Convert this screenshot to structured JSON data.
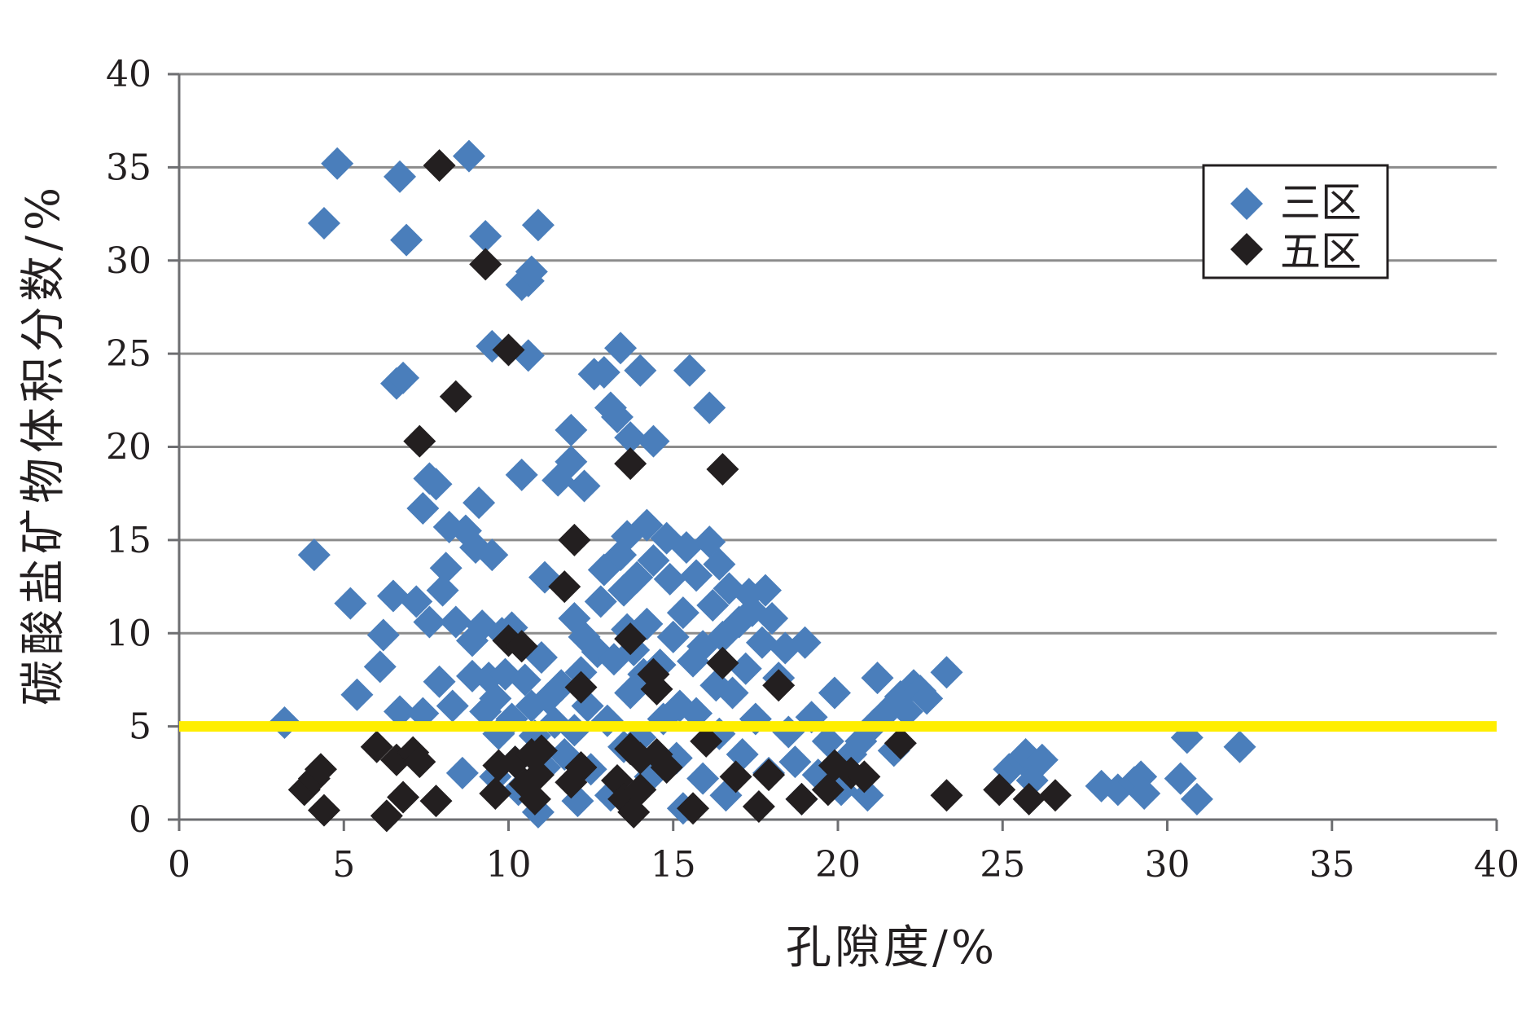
{
  "chart_data": {
    "type": "scatter",
    "title": "",
    "xlabel": "孔隙度/%",
    "ylabel": "碳酸盐矿物体积分数/%",
    "xlim": [
      0,
      40
    ],
    "ylim": [
      0,
      40
    ],
    "xticks": [
      0,
      5,
      10,
      15,
      20,
      25,
      30,
      35,
      40
    ],
    "yticks": [
      0,
      5,
      10,
      15,
      20,
      25,
      30,
      35,
      40
    ],
    "grid": "horizontal",
    "legend_position": "top-right",
    "reference_line": {
      "y": 5,
      "color": "#ffee00"
    },
    "series": [
      {
        "name": "三区",
        "color": "#4a7ebb",
        "marker": "diamond",
        "points": [
          [
            3.2,
            5.2
          ],
          [
            4.1,
            14.2
          ],
          [
            4.4,
            32
          ],
          [
            4.8,
            35.2
          ],
          [
            5.2,
            11.6
          ],
          [
            5.4,
            6.7
          ],
          [
            6.1,
            8.2
          ],
          [
            6.2,
            9.9
          ],
          [
            6.5,
            12
          ],
          [
            6.6,
            23.4
          ],
          [
            6.8,
            23.7
          ],
          [
            6.7,
            5.8
          ],
          [
            6.7,
            34.5
          ],
          [
            6.9,
            31.1
          ],
          [
            7.2,
            11.7
          ],
          [
            7.4,
            16.7
          ],
          [
            7.4,
            5.7
          ],
          [
            7.6,
            18.3
          ],
          [
            7.6,
            10.6
          ],
          [
            7.8,
            18
          ],
          [
            7.9,
            7.4
          ],
          [
            8,
            12.3
          ],
          [
            8.1,
            13.5
          ],
          [
            8.2,
            15.7
          ],
          [
            8.4,
            10.6
          ],
          [
            8.3,
            6.1
          ],
          [
            8.6,
            2.5
          ],
          [
            8.7,
            15.5
          ],
          [
            8.8,
            35.6
          ],
          [
            8.9,
            7.7
          ],
          [
            8.9,
            9.6
          ],
          [
            9,
            14.6
          ],
          [
            9.1,
            17
          ],
          [
            9.2,
            10.4
          ],
          [
            9.3,
            31.3
          ],
          [
            9.3,
            5.8
          ],
          [
            9.4,
            7.6
          ],
          [
            9.5,
            25.4
          ],
          [
            9.5,
            14.2
          ],
          [
            9.6,
            2.3
          ],
          [
            9.6,
            6.5
          ],
          [
            9.7,
            4.6
          ],
          [
            9.8,
            10
          ],
          [
            9.9,
            7.8
          ],
          [
            10.1,
            10.3
          ],
          [
            10.1,
            5.4
          ],
          [
            10.2,
            3.1
          ],
          [
            10.3,
            1.6
          ],
          [
            10.4,
            18.5
          ],
          [
            10.4,
            28.7
          ],
          [
            10.5,
            7.5
          ],
          [
            10.6,
            28.9
          ],
          [
            10.6,
            24.9
          ],
          [
            10.7,
            29.4
          ],
          [
            10.7,
            6.1
          ],
          [
            10.8,
            4.5
          ],
          [
            10.9,
            31.9
          ],
          [
            10.9,
            0.4
          ],
          [
            11,
            8.7
          ],
          [
            11.1,
            13
          ],
          [
            11.1,
            2.8
          ],
          [
            11.2,
            6.5
          ],
          [
            11.4,
            5.2
          ],
          [
            11.5,
            18.2
          ],
          [
            11.6,
            7.2
          ],
          [
            11.7,
            3.5
          ],
          [
            11.9,
            20.9
          ],
          [
            11.9,
            19.2
          ],
          [
            12,
            10.8
          ],
          [
            12,
            4.8
          ],
          [
            12.1,
            1
          ],
          [
            12.2,
            7.9
          ],
          [
            12.3,
            9.8
          ],
          [
            12.3,
            17.9
          ],
          [
            12.4,
            6.1
          ],
          [
            12.5,
            2.7
          ],
          [
            12.6,
            23.9
          ],
          [
            12.7,
            9
          ],
          [
            12.8,
            11.7
          ],
          [
            12.9,
            24
          ],
          [
            12.9,
            13.4
          ],
          [
            13,
            5.3
          ],
          [
            13.1,
            22.1
          ],
          [
            13.1,
            1.3
          ],
          [
            13.2,
            8.6
          ],
          [
            13.3,
            21.6
          ],
          [
            13.4,
            14.2
          ],
          [
            13.4,
            25.3
          ],
          [
            13.5,
            3.9
          ],
          [
            13.5,
            12.3
          ],
          [
            13.6,
            10.2
          ],
          [
            13.6,
            15.2
          ],
          [
            13.7,
            6.8
          ],
          [
            13.7,
            20.5
          ],
          [
            13.8,
            9.1
          ],
          [
            13.9,
            13
          ],
          [
            14,
            24.1
          ],
          [
            14,
            4.4
          ],
          [
            14.1,
            7.8
          ],
          [
            14.2,
            15.8
          ],
          [
            14.2,
            10.5
          ],
          [
            14.3,
            2.3
          ],
          [
            14.4,
            20.3
          ],
          [
            14.4,
            13.9
          ],
          [
            14.6,
            8.3
          ],
          [
            14.7,
            5.4
          ],
          [
            14.8,
            15.1
          ],
          [
            14.9,
            12.9
          ],
          [
            15,
            9.8
          ],
          [
            15.1,
            3.3
          ],
          [
            15.2,
            6.1
          ],
          [
            15.3,
            11.1
          ],
          [
            15.3,
            0.6
          ],
          [
            15.4,
            14.6
          ],
          [
            15.5,
            24.1
          ],
          [
            15.6,
            8.5
          ],
          [
            15.7,
            5.7
          ],
          [
            15.7,
            13.1
          ],
          [
            15.9,
            9.3
          ],
          [
            15.9,
            2.2
          ],
          [
            16.1,
            14.9
          ],
          [
            16.1,
            22.1
          ],
          [
            16.2,
            11.5
          ],
          [
            16.3,
            7.2
          ],
          [
            16.4,
            4.6
          ],
          [
            16.4,
            13.7
          ],
          [
            16.5,
            9.8
          ],
          [
            16.6,
            1.3
          ],
          [
            16.7,
            12.4
          ],
          [
            16.8,
            6.8
          ],
          [
            17,
            10.6
          ],
          [
            17.1,
            3.5
          ],
          [
            17.2,
            8.1
          ],
          [
            17.3,
            12.1
          ],
          [
            17.4,
            11.2
          ],
          [
            17.5,
            5.4
          ],
          [
            17.7,
            9.5
          ],
          [
            17.8,
            12.3
          ],
          [
            17.9,
            2.5
          ],
          [
            18,
            10.8
          ],
          [
            18.2,
            7.6
          ],
          [
            18.4,
            9.2
          ],
          [
            18.5,
            4.7
          ],
          [
            18.7,
            3.1
          ],
          [
            18.9,
            1.1
          ],
          [
            19,
            9.5
          ],
          [
            19.2,
            5.5
          ],
          [
            19.4,
            2.4
          ],
          [
            19.7,
            4.2
          ],
          [
            19.9,
            6.8
          ],
          [
            20.1,
            1.6
          ],
          [
            20.4,
            3.5
          ],
          [
            20.7,
            4.2
          ],
          [
            20.9,
            1.3
          ],
          [
            21.1,
            5.1
          ],
          [
            21.2,
            7.6
          ],
          [
            21.5,
            5.8
          ],
          [
            21.7,
            3.7
          ],
          [
            21.9,
            6.6
          ],
          [
            22.1,
            5.8
          ],
          [
            22.3,
            7.2
          ],
          [
            22.5,
            6.9
          ],
          [
            22.7,
            6.5
          ],
          [
            23.3,
            7.9
          ],
          [
            25.2,
            2.7
          ],
          [
            25.6,
            3.2
          ],
          [
            25.7,
            3.5
          ],
          [
            25.9,
            2.1
          ],
          [
            26.2,
            3.2
          ],
          [
            28,
            1.8
          ],
          [
            28.5,
            1.6
          ],
          [
            29,
            2
          ],
          [
            29.2,
            2.3
          ],
          [
            29.3,
            1.4
          ],
          [
            30.4,
            2.2
          ],
          [
            30.6,
            4.4
          ],
          [
            30.9,
            1.1
          ],
          [
            32.2,
            3.9
          ]
        ]
      },
      {
        "name": "五区",
        "color": "#231f20",
        "marker": "diamond",
        "points": [
          [
            3.8,
            1.6
          ],
          [
            4.1,
            2.2
          ],
          [
            4.3,
            2.7
          ],
          [
            4.4,
            0.5
          ],
          [
            6,
            3.9
          ],
          [
            6.3,
            0.2
          ],
          [
            6.6,
            3.2
          ],
          [
            6.8,
            1.2
          ],
          [
            7.1,
            3.6
          ],
          [
            7.3,
            3.1
          ],
          [
            7.3,
            20.3
          ],
          [
            7.8,
            1
          ],
          [
            7.9,
            35.1
          ],
          [
            8.4,
            22.7
          ],
          [
            9.3,
            29.8
          ],
          [
            9.6,
            1.4
          ],
          [
            9.7,
            2.9
          ],
          [
            10,
            25.2
          ],
          [
            10,
            9.6
          ],
          [
            10.2,
            3.1
          ],
          [
            10.4,
            9.3
          ],
          [
            10.5,
            1.9
          ],
          [
            10.7,
            3.5
          ],
          [
            10.8,
            1.1
          ],
          [
            10.9,
            2.4
          ],
          [
            11,
            3.7
          ],
          [
            11.7,
            12.5
          ],
          [
            11.9,
            2
          ],
          [
            12,
            15
          ],
          [
            12.2,
            7.1
          ],
          [
            12.2,
            2.8
          ],
          [
            13.3,
            2.1
          ],
          [
            13.5,
            1.1
          ],
          [
            13.7,
            9.7
          ],
          [
            13.7,
            3.8
          ],
          [
            13.7,
            19.1
          ],
          [
            13.8,
            0.4
          ],
          [
            14,
            3.3
          ],
          [
            14,
            1.6
          ],
          [
            14.4,
            7.8
          ],
          [
            14.5,
            3.5
          ],
          [
            14.5,
            7
          ],
          [
            14.8,
            2.8
          ],
          [
            15.6,
            0.6
          ],
          [
            16,
            4.2
          ],
          [
            16.5,
            18.8
          ],
          [
            16.5,
            8.4
          ],
          [
            16.9,
            2.3
          ],
          [
            17.6,
            0.7
          ],
          [
            17.9,
            2.4
          ],
          [
            18.2,
            7.2
          ],
          [
            18.9,
            1.1
          ],
          [
            19.7,
            1.6
          ],
          [
            19.9,
            2.9
          ],
          [
            20.4,
            2.5
          ],
          [
            20.8,
            2.3
          ],
          [
            21.9,
            4.1
          ],
          [
            23.3,
            1.3
          ],
          [
            24.9,
            1.6
          ],
          [
            25.8,
            1.1
          ],
          [
            26.6,
            1.3
          ]
        ]
      }
    ]
  }
}
